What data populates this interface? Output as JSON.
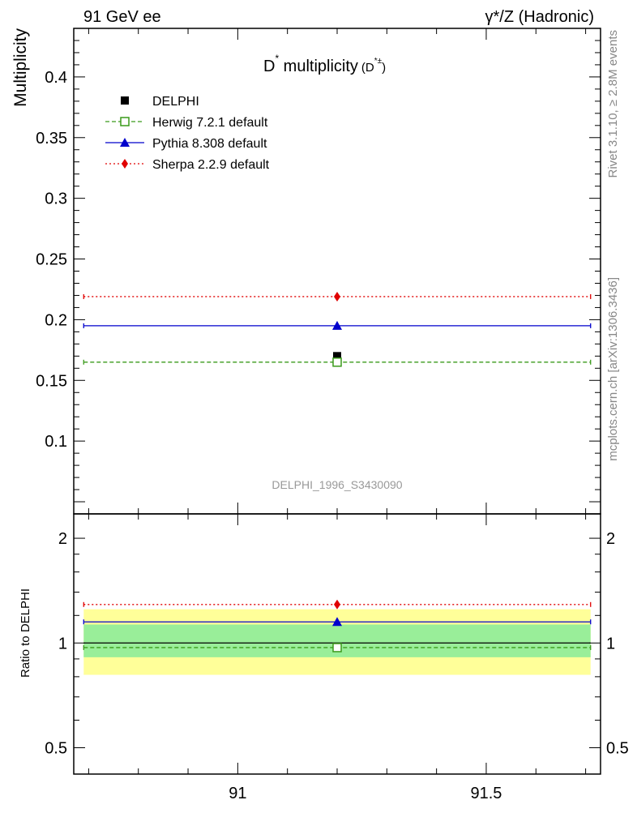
{
  "header": {
    "left": "91 GeV ee",
    "right": "γ*/Z (Hadronic)"
  },
  "side_labels": {
    "rivet": "Rivet 3.1.10, ≥ 2.8M events",
    "source": "mcplots.cern.ch [arXiv:1306.3436]"
  },
  "chart_data": [
    {
      "type": "scatter",
      "title_main": "D",
      "title_sup": "*",
      "title_mid": " multiplicity",
      "title_paren_open": "(D",
      "title_paren_sup": "*±",
      "title_paren_close": ")",
      "ylabel": "Multiplicity",
      "watermark": "DELPHI_1996_S3430090",
      "xlim": [
        90.67,
        91.73
      ],
      "ylim": [
        0.04,
        0.44
      ],
      "yticks": [
        "0.1",
        "0.15",
        "0.2",
        "0.25",
        "0.3",
        "0.35",
        "0.4"
      ],
      "ytick_values": [
        0.1,
        0.15,
        0.2,
        0.25,
        0.3,
        0.35,
        0.4
      ],
      "legend_position": "top-left",
      "series": [
        {
          "name": "DELPHI",
          "marker": "filled-square",
          "color": "#000000",
          "line": "none",
          "x": [
            91.2
          ],
          "y": [
            0.17
          ]
        },
        {
          "name": "Herwig 7.2.1 default",
          "marker": "open-square",
          "color": "#3a9a1a",
          "line": "dashed",
          "x": [
            91.2
          ],
          "y": [
            0.165
          ],
          "x_range": [
            90.69,
            91.71
          ]
        },
        {
          "name": "Pythia 8.308 default",
          "marker": "triangle",
          "color": "#0000cc",
          "line": "solid",
          "x": [
            91.2
          ],
          "y": [
            0.195
          ],
          "x_range": [
            90.69,
            91.71
          ]
        },
        {
          "name": "Sherpa 2.2.9 default",
          "marker": "diamond",
          "color": "#e00000",
          "line": "dotted",
          "x": [
            91.2
          ],
          "y": [
            0.219
          ],
          "x_range": [
            90.69,
            91.71
          ]
        }
      ]
    },
    {
      "type": "scatter",
      "ylabel": "Ratio to DELPHI",
      "xlim": [
        90.67,
        91.73
      ],
      "xticks": [
        "91",
        "91.5"
      ],
      "xtick_values": [
        91.0,
        91.5
      ],
      "y_scale": "log",
      "ylim": [
        0.42,
        2.35
      ],
      "yticks": [
        "0.5",
        "1",
        "2"
      ],
      "ytick_values": [
        0.5,
        1,
        2
      ],
      "bands": [
        {
          "name": "total uncertainty",
          "color": "#ffff99",
          "range": [
            0.81,
            1.25
          ]
        },
        {
          "name": "stat uncertainty",
          "color": "#99ee99",
          "range": [
            0.91,
            1.13
          ]
        }
      ],
      "series": [
        {
          "name": "Herwig 7.2.1 default",
          "color": "#3a9a1a",
          "line": "dashed",
          "x": [
            91.2
          ],
          "y": [
            0.97
          ]
        },
        {
          "name": "Pythia 8.308 default",
          "color": "#0000cc",
          "line": "solid",
          "x": [
            91.2
          ],
          "y": [
            1.15
          ]
        },
        {
          "name": "Sherpa 2.2.9 default",
          "color": "#e00000",
          "line": "dotted",
          "x": [
            91.2
          ],
          "y": [
            1.29
          ]
        }
      ]
    }
  ]
}
